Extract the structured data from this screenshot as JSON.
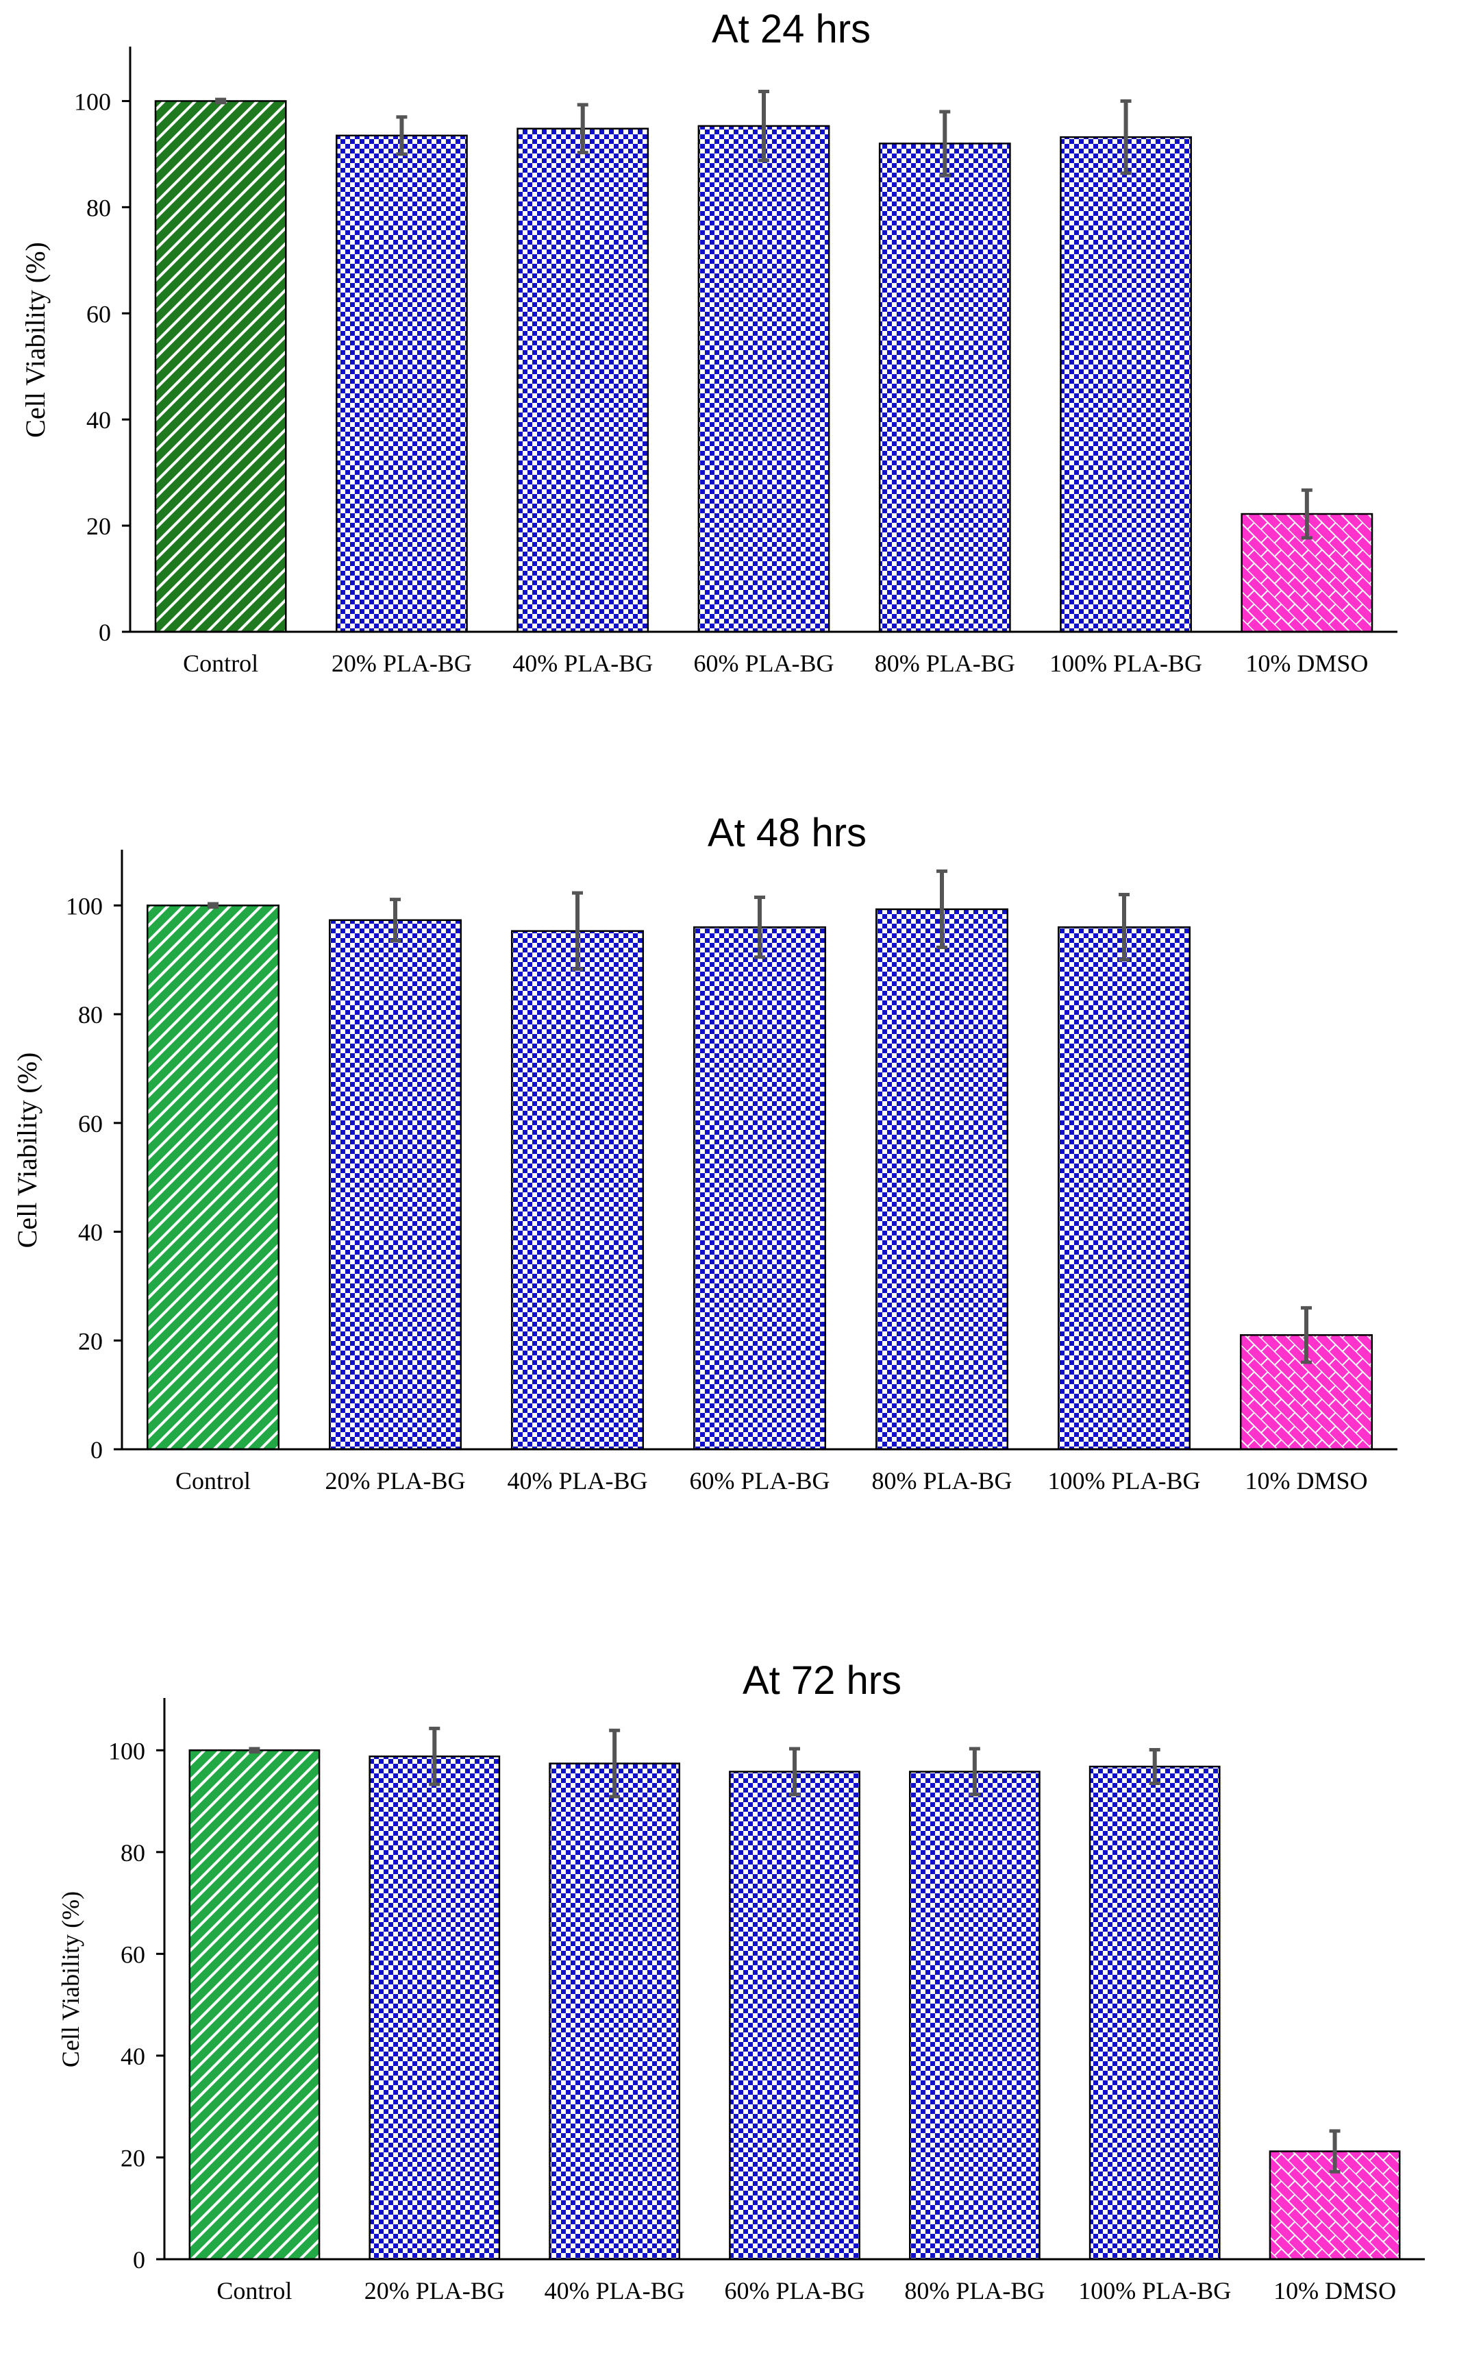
{
  "colors": {
    "control_24": "#1f7a1f",
    "control_light": "#22a845",
    "treatment": "#1010c8",
    "dmso": "#ff33cc",
    "error_bar": "#555555",
    "axis": "#000000"
  },
  "chart_data": [
    {
      "type": "bar",
      "title": "At 24 hrs",
      "xlabel": "",
      "ylabel": "Cell Viability (%)",
      "ylim": [
        0,
        110
      ],
      "yticks": [
        0,
        20,
        40,
        60,
        80,
        100
      ],
      "categories": [
        "Control",
        "20% PLA-BG",
        "40% PLA-BG",
        "60% PLA-BG",
        "80% PLA-BG",
        "100% PLA-BG",
        "10% DMSO"
      ],
      "values": [
        100,
        93.5,
        94.8,
        95.3,
        92.0,
        93.2,
        22.2
      ],
      "errors": [
        0.3,
        3.5,
        4.5,
        6.5,
        6.0,
        6.8,
        4.5
      ],
      "fill_patterns": [
        "stripes-dark-green",
        "checker-blue",
        "checker-blue",
        "checker-blue",
        "checker-blue",
        "checker-blue",
        "brick-magenta"
      ]
    },
    {
      "type": "bar",
      "title": "At 48 hrs",
      "xlabel": "",
      "ylabel": "Cell Viability (%)",
      "ylim": [
        0,
        110
      ],
      "yticks": [
        0,
        20,
        40,
        60,
        80,
        100
      ],
      "categories": [
        "Control",
        "20% PLA-BG",
        "40% PLA-BG",
        "60% PLA-BG",
        "80% PLA-BG",
        "100% PLA-BG",
        "10% DMSO"
      ],
      "values": [
        100,
        97.3,
        95.3,
        96.0,
        99.3,
        96.0,
        21.0
      ],
      "errors": [
        0.3,
        3.8,
        7.0,
        5.5,
        7.0,
        6.0,
        5.0
      ],
      "fill_patterns": [
        "stripes-light-green",
        "checker-blue",
        "checker-blue",
        "checker-blue",
        "checker-blue",
        "checker-blue",
        "brick-magenta"
      ]
    },
    {
      "type": "bar",
      "title": "At 72 hrs",
      "xlabel": "",
      "ylabel": "Cell Viability (%)",
      "ylim": [
        0,
        110
      ],
      "yticks": [
        0,
        20,
        40,
        60,
        80,
        100
      ],
      "categories": [
        "Control",
        "20% PLA-BG",
        "40% PLA-BG",
        "60% PLA-BG",
        "80% PLA-BG",
        "100% PLA-BG",
        "10% DMSO"
      ],
      "values": [
        100,
        98.8,
        97.4,
        95.8,
        95.8,
        96.8,
        21.2
      ],
      "errors": [
        0.3,
        5.5,
        6.5,
        4.5,
        4.5,
        3.3,
        4.0
      ],
      "fill_patterns": [
        "stripes-light-green",
        "checker-blue",
        "checker-blue",
        "checker-blue",
        "checker-blue",
        "checker-blue",
        "brick-magenta"
      ]
    }
  ]
}
